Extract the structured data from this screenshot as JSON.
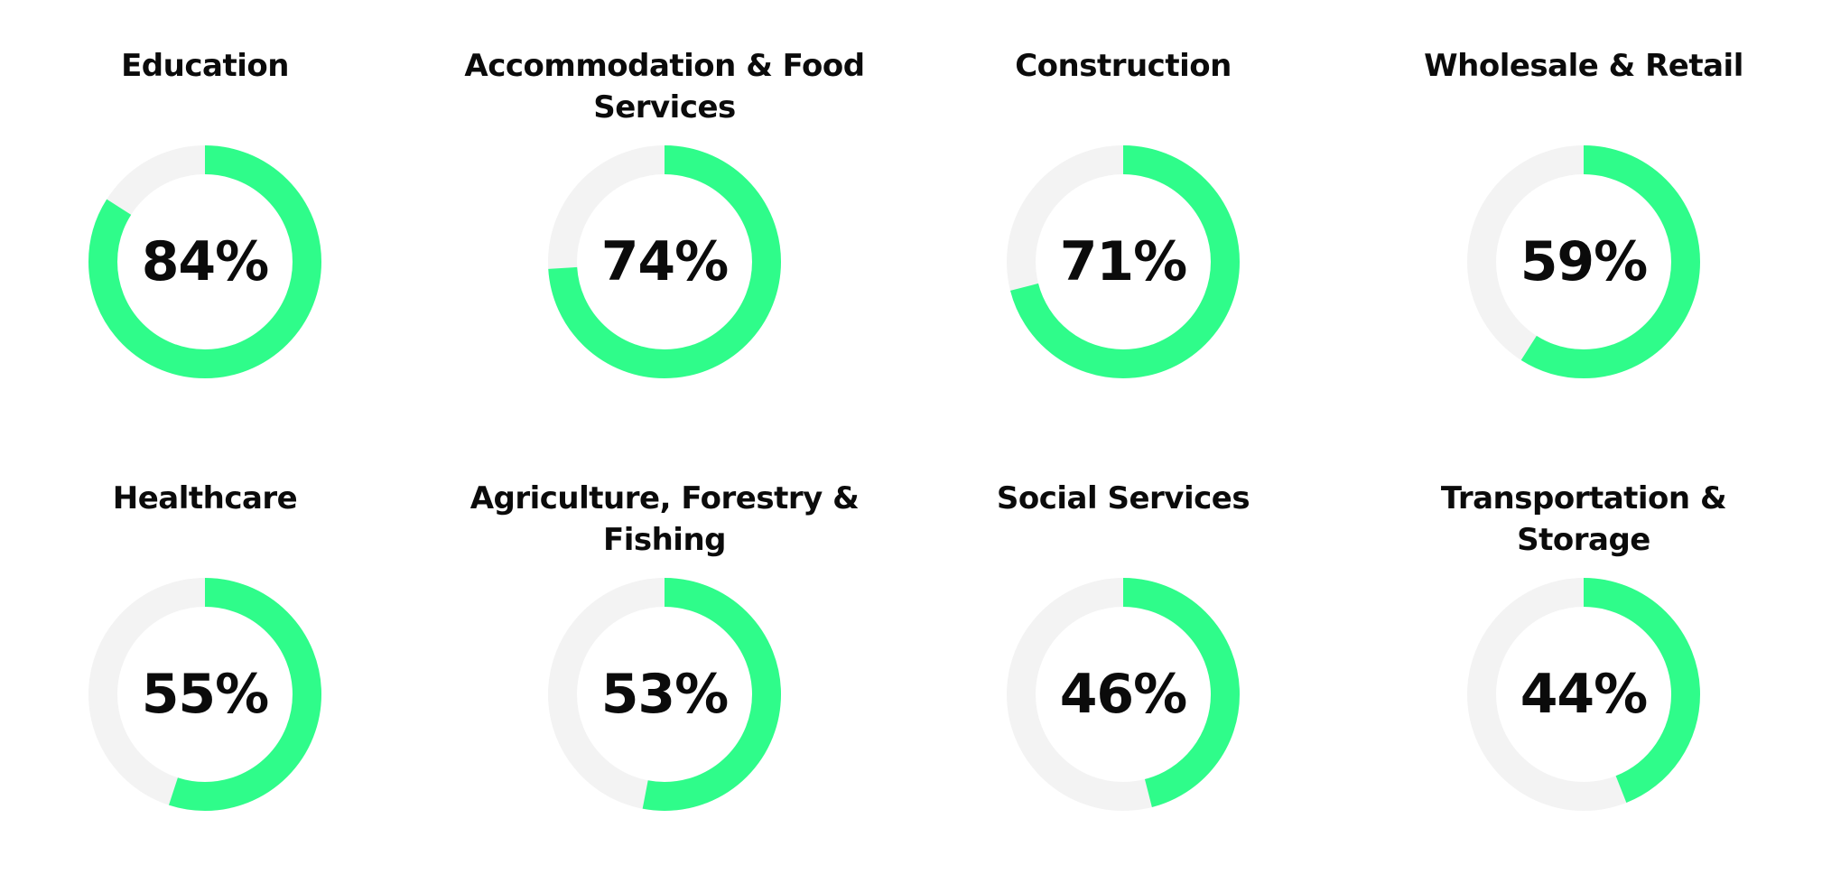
{
  "colors": {
    "fill": "#2ffc8a",
    "track": "#f3f3f3",
    "text": "#0b0b0b"
  },
  "chart_data": {
    "type": "donut-grid",
    "items": [
      {
        "label": "Education",
        "value": 84,
        "display": "84%"
      },
      {
        "label": "Accommodation & Food Services",
        "value": 74,
        "display": "74%"
      },
      {
        "label": "Construction",
        "value": 71,
        "display": "71%"
      },
      {
        "label": "Wholesale & Retail",
        "value": 59,
        "display": "59%"
      },
      {
        "label": "Healthcare",
        "value": 55,
        "display": "55%"
      },
      {
        "label": "Agriculture, Forestry & Fishing",
        "value": 53,
        "display": "53%"
      },
      {
        "label": "Social Services",
        "value": 46,
        "display": "46%"
      },
      {
        "label": "Transportation & Storage",
        "value": 44,
        "display": "44%"
      }
    ]
  }
}
